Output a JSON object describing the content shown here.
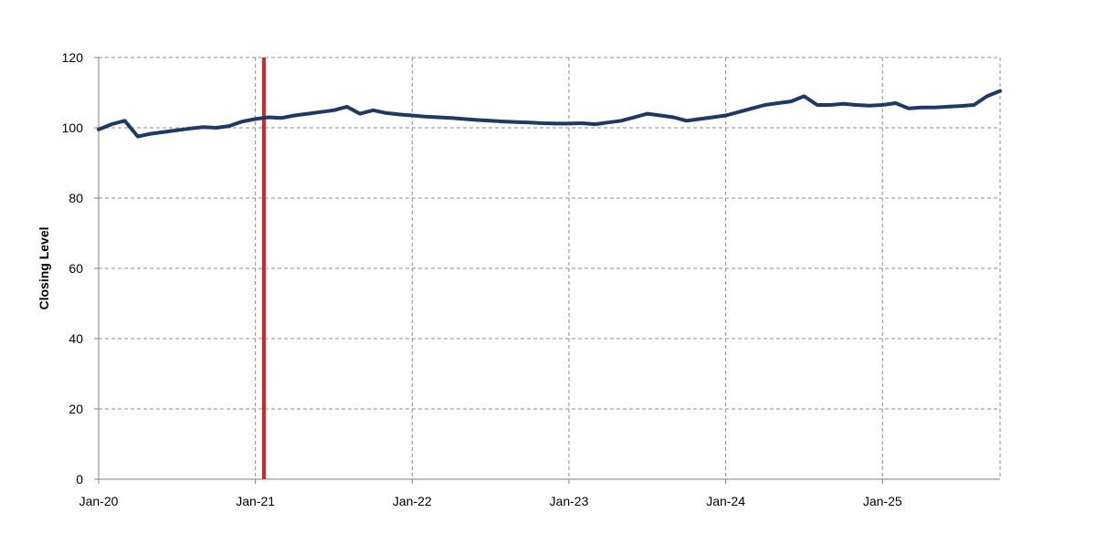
{
  "chart_data": {
    "type": "line",
    "title": "",
    "xlabel": "",
    "ylabel": "Closing Level",
    "ylim": [
      0,
      120
    ],
    "yticks": [
      0,
      20,
      40,
      60,
      80,
      100,
      120
    ],
    "xlim": [
      "2020-01",
      "2025-10"
    ],
    "xticks": [
      {
        "date": "2020-01",
        "label": "Jan-20"
      },
      {
        "date": "2021-01",
        "label": "Jan-21"
      },
      {
        "date": "2022-01",
        "label": "Jan-22"
      },
      {
        "date": "2023-01",
        "label": "Jan-23"
      },
      {
        "date": "2024-01",
        "label": "Jan-24"
      },
      {
        "date": "2025-01",
        "label": "Jan-25"
      }
    ],
    "grid": true,
    "legend": "none",
    "marker_line": {
      "date": "2021-02",
      "color": "#E02020"
    },
    "series": [
      {
        "color": "#1F3864",
        "points": [
          [
            "2020-01",
            99.5
          ],
          [
            "2020-02",
            101.0
          ],
          [
            "2020-03",
            102.0
          ],
          [
            "2020-04",
            97.5
          ],
          [
            "2020-05",
            98.3
          ],
          [
            "2020-06",
            98.8
          ],
          [
            "2020-07",
            99.3
          ],
          [
            "2020-08",
            99.8
          ],
          [
            "2020-09",
            100.2
          ],
          [
            "2020-10",
            100.0
          ],
          [
            "2020-11",
            100.5
          ],
          [
            "2020-12",
            101.8
          ],
          [
            "2021-01",
            102.5
          ],
          [
            "2021-02",
            103.0
          ],
          [
            "2021-03",
            102.8
          ],
          [
            "2021-04",
            103.5
          ],
          [
            "2021-05",
            104.0
          ],
          [
            "2021-06",
            104.5
          ],
          [
            "2021-07",
            105.0
          ],
          [
            "2021-08",
            106.0
          ],
          [
            "2021-09",
            104.0
          ],
          [
            "2021-10",
            105.0
          ],
          [
            "2021-11",
            104.2
          ],
          [
            "2021-12",
            103.8
          ],
          [
            "2022-01",
            103.5
          ],
          [
            "2022-02",
            103.2
          ],
          [
            "2022-03",
            103.0
          ],
          [
            "2022-04",
            102.8
          ],
          [
            "2022-05",
            102.5
          ],
          [
            "2022-06",
            102.2
          ],
          [
            "2022-07",
            102.0
          ],
          [
            "2022-08",
            101.8
          ],
          [
            "2022-09",
            101.6
          ],
          [
            "2022-10",
            101.5
          ],
          [
            "2022-11",
            101.3
          ],
          [
            "2022-12",
            101.2
          ],
          [
            "2023-01",
            101.2
          ],
          [
            "2023-02",
            101.3
          ],
          [
            "2023-03",
            101.0
          ],
          [
            "2023-04",
            101.5
          ],
          [
            "2023-05",
            102.0
          ],
          [
            "2023-06",
            103.0
          ],
          [
            "2023-07",
            104.0
          ],
          [
            "2023-08",
            103.5
          ],
          [
            "2023-09",
            103.0
          ],
          [
            "2023-10",
            102.0
          ],
          [
            "2023-11",
            102.5
          ],
          [
            "2023-12",
            103.0
          ],
          [
            "2024-01",
            103.5
          ],
          [
            "2024-02",
            104.5
          ],
          [
            "2024-03",
            105.5
          ],
          [
            "2024-04",
            106.5
          ],
          [
            "2024-05",
            107.0
          ],
          [
            "2024-06",
            107.5
          ],
          [
            "2024-07",
            109.0
          ],
          [
            "2024-08",
            106.5
          ],
          [
            "2024-09",
            106.5
          ],
          [
            "2024-10",
            106.8
          ],
          [
            "2024-11",
            106.5
          ],
          [
            "2024-12",
            106.3
          ],
          [
            "2025-01",
            106.5
          ],
          [
            "2025-02",
            107.0
          ],
          [
            "2025-03",
            105.5
          ],
          [
            "2025-04",
            105.8
          ],
          [
            "2025-05",
            105.8
          ],
          [
            "2025-06",
            106.0
          ],
          [
            "2025-07",
            106.2
          ],
          [
            "2025-08",
            106.5
          ],
          [
            "2025-09",
            109.0
          ],
          [
            "2025-10",
            110.5
          ]
        ]
      }
    ]
  }
}
